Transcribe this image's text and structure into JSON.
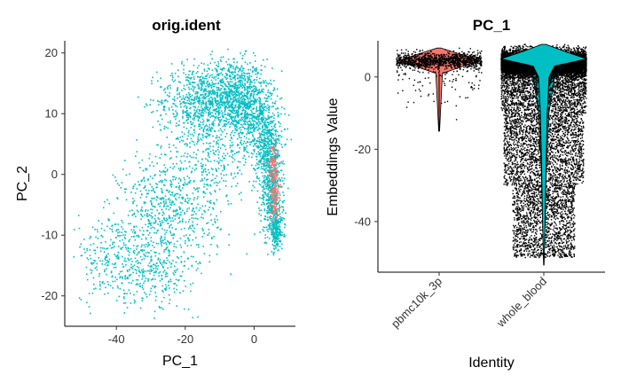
{
  "chart_data": [
    {
      "type": "scatter",
      "title": "orig.ident",
      "xlabel": "PC_1",
      "ylabel": "PC_2",
      "xlim": [
        -55,
        12
      ],
      "ylim": [
        -25,
        22
      ],
      "xticks": [
        -40,
        -20,
        0
      ],
      "yticks": [
        -20,
        -10,
        0,
        10,
        20
      ],
      "grid": false,
      "legend": "none",
      "series": [
        {
          "group": "pbmc10k_3p",
          "color": "#F8766D",
          "clusters": [
            {
              "x": 5.6,
              "y": 1.5,
              "sx": 0.7,
              "sy": 1.6,
              "n": 90
            },
            {
              "x": 5.9,
              "y": -4.0,
              "sx": 0.8,
              "sy": 2.0,
              "n": 110
            }
          ]
        },
        {
          "group": "whole_blood",
          "color": "#00BFC4",
          "clusters": [
            {
              "x": -7,
              "y": 13,
              "sx": 5.0,
              "sy": 3.0,
              "n": 900
            },
            {
              "x": -18,
              "y": 12,
              "sx": 5.0,
              "sy": 3.0,
              "n": 400
            },
            {
              "x": 0,
              "y": 10,
              "sx": 3.5,
              "sy": 3.0,
              "n": 500
            },
            {
              "x": 4,
              "y": 4,
              "sx": 2.0,
              "sy": 3.0,
              "n": 400
            },
            {
              "x": 5,
              "y": -3,
              "sx": 1.6,
              "sy": 4.0,
              "n": 450
            },
            {
              "x": 6.5,
              "y": -9,
              "sx": 1.0,
              "sy": 1.6,
              "n": 220
            },
            {
              "x": -12,
              "y": 4,
              "sx": 6.0,
              "sy": 5.0,
              "n": 400
            },
            {
              "x": -25,
              "y": -6,
              "sx": 7.0,
              "sy": 5.0,
              "n": 650
            },
            {
              "x": -40,
              "y": -14,
              "sx": 6.0,
              "sy": 3.5,
              "n": 300
            },
            {
              "x": -28,
              "y": -16,
              "sx": 5.0,
              "sy": 3.0,
              "n": 200
            }
          ]
        }
      ]
    },
    {
      "type": "violin",
      "title": "PC_1",
      "xlabel": "Identity",
      "ylabel": "Embeddings Value",
      "ylim": [
        -54,
        10
      ],
      "yticks": [
        -40,
        -20,
        0
      ],
      "grid": false,
      "categories": [
        "pbmc10k_3p",
        "whole_blood"
      ],
      "colors": [
        "#F8766D",
        "#00BFC4"
      ],
      "groups": [
        {
          "name": "pbmc10k_3p",
          "median": 4.5,
          "min": -15,
          "max": 8,
          "points": 1200
        },
        {
          "name": "whole_blood",
          "median": 4,
          "min": -52,
          "max": 9,
          "points": 14000
        }
      ]
    }
  ]
}
